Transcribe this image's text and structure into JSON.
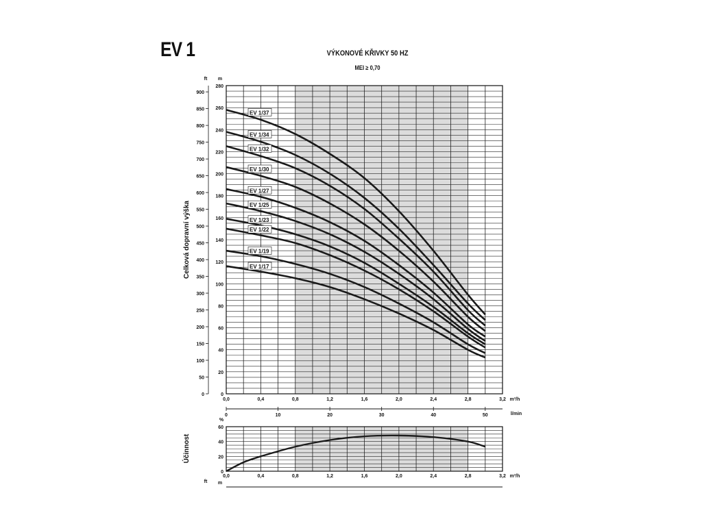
{
  "header": {
    "model": "EV 1",
    "title": "VÝKONOVÉ KŘIVKY 50 HZ",
    "subtitle": "MEI ≥ 0,70"
  },
  "colors": {
    "curve": "#1a1a1a",
    "grid": "#222222",
    "shaded_band": "#dcdcdc"
  },
  "chart_data": [
    {
      "type": "line",
      "name_panel": "head",
      "ylabel": "Celková dopravní výška",
      "y_unit_left": "ft",
      "y_unit_right": "m",
      "x_unit": "m³/h",
      "x2_unit": "l/min",
      "xlim": [
        0,
        3.2
      ],
      "ylim": [
        0,
        280
      ],
      "x_ticks": [
        "0,0",
        "0,4",
        "0,8",
        "1,2",
        "1,6",
        "2,0",
        "2,4",
        "2,8",
        "3,2"
      ],
      "x_tick_values": [
        0,
        0.4,
        0.8,
        1.2,
        1.6,
        2.0,
        2.4,
        2.8,
        3.2
      ],
      "x2_ticks": [
        "0",
        "10",
        "20",
        "30",
        "40",
        "50"
      ],
      "x2_tick_values": [
        0,
        10,
        20,
        30,
        40,
        50
      ],
      "y_ticks_m": [
        0,
        20,
        40,
        60,
        80,
        100,
        120,
        140,
        160,
        180,
        200,
        220,
        240,
        260,
        280
      ],
      "y_ticks_ft": [
        0,
        50,
        100,
        150,
        200,
        250,
        300,
        350,
        400,
        450,
        500,
        550,
        600,
        650,
        700,
        750,
        800,
        850,
        900
      ],
      "shaded_x_range": [
        0.8,
        2.8
      ],
      "grid": true,
      "series": [
        {
          "name": "EV 1/37",
          "x": [
            0,
            0.4,
            0.8,
            1.2,
            1.6,
            2.0,
            2.4,
            2.8,
            3.0
          ],
          "y": [
            258,
            249,
            236,
            218,
            196,
            166,
            130,
            90,
            72
          ]
        },
        {
          "name": "EV 1/34",
          "x": [
            0,
            0.4,
            0.8,
            1.2,
            1.6,
            2.0,
            2.4,
            2.8,
            3.0
          ],
          "y": [
            238,
            229,
            217,
            200,
            178,
            150,
            117,
            82,
            67
          ]
        },
        {
          "name": "EV 1/32",
          "x": [
            0,
            0.4,
            0.8,
            1.2,
            1.6,
            2.0,
            2.4,
            2.8,
            3.0
          ],
          "y": [
            225,
            216,
            205,
            189,
            168,
            141,
            111,
            76,
            62
          ]
        },
        {
          "name": "EV 1/30",
          "x": [
            0,
            0.4,
            0.8,
            1.2,
            1.6,
            2.0,
            2.4,
            2.8,
            3.0
          ],
          "y": [
            206,
            198,
            188,
            173,
            154,
            130,
            102,
            70,
            57
          ]
        },
        {
          "name": "EV 1/27",
          "x": [
            0,
            0.4,
            0.8,
            1.2,
            1.6,
            2.0,
            2.4,
            2.8,
            3.0
          ],
          "y": [
            186,
            179,
            169,
            156,
            139,
            117,
            92,
            63,
            52
          ]
        },
        {
          "name": "EV 1/25",
          "x": [
            0,
            0.4,
            0.8,
            1.2,
            1.6,
            2.0,
            2.4,
            2.8,
            3.0
          ],
          "y": [
            173,
            166,
            157,
            145,
            129,
            109,
            86,
            59,
            48
          ]
        },
        {
          "name": "EV 1/23",
          "x": [
            0,
            0.4,
            0.8,
            1.2,
            1.6,
            2.0,
            2.4,
            2.8,
            3.0
          ],
          "y": [
            159,
            153,
            145,
            134,
            119,
            100,
            79,
            55,
            45
          ]
        },
        {
          "name": "EV 1/22",
          "x": [
            0,
            0.4,
            0.8,
            1.2,
            1.6,
            2.0,
            2.4,
            2.8,
            3.0
          ],
          "y": [
            150,
            144,
            137,
            126,
            112,
            95,
            75,
            52,
            42
          ]
        },
        {
          "name": "EV 1/19",
          "x": [
            0,
            0.4,
            0.8,
            1.2,
            1.6,
            2.0,
            2.4,
            2.8,
            3.0
          ],
          "y": [
            130,
            125,
            118,
            109,
            97,
            82,
            65,
            45,
            37
          ]
        },
        {
          "name": "EV 1/17",
          "x": [
            0,
            0.4,
            0.8,
            1.2,
            1.6,
            2.0,
            2.4,
            2.8,
            3.0
          ],
          "y": [
            116,
            111,
            105,
            97,
            86,
            73,
            58,
            40,
            33
          ]
        }
      ]
    },
    {
      "type": "line",
      "name_panel": "efficiency",
      "ylabel": "Účinnost",
      "y_unit": "%",
      "x_unit": "m³/h",
      "bottom_unit_left": "ft",
      "bottom_unit_right": "m",
      "xlim": [
        0,
        3.2
      ],
      "ylim": [
        0,
        60
      ],
      "x_ticks": [
        "0,0",
        "0,4",
        "0,8",
        "1,2",
        "1,6",
        "2,0",
        "2,4",
        "2,8",
        "3,2"
      ],
      "x_tick_values": [
        0,
        0.4,
        0.8,
        1.2,
        1.6,
        2.0,
        2.4,
        2.8,
        3.2
      ],
      "y_ticks": [
        0,
        20,
        40,
        60
      ],
      "shaded_x_range": [
        0.8,
        2.8
      ],
      "grid": true,
      "series": [
        {
          "x": [
            0,
            0.2,
            0.4,
            0.8,
            1.2,
            1.6,
            2.0,
            2.4,
            2.8,
            3.0
          ],
          "y": [
            0,
            12,
            20,
            33,
            42,
            47,
            48,
            46,
            40,
            33
          ]
        }
      ]
    }
  ]
}
